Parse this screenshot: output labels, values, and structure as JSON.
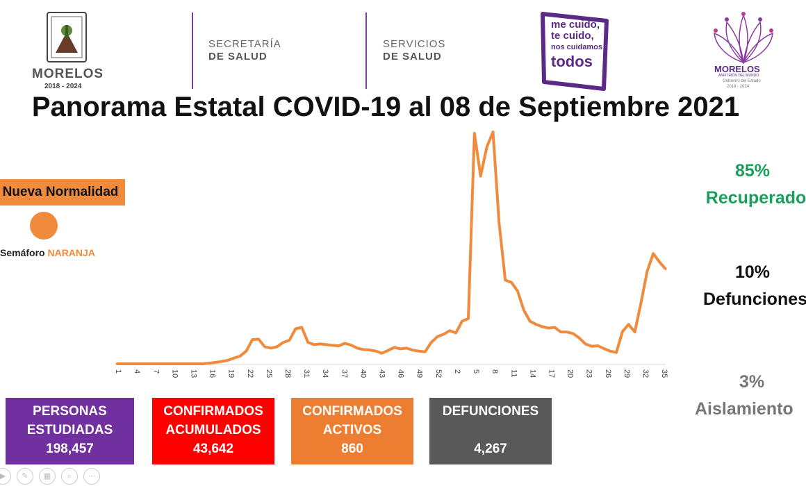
{
  "header": {
    "logo_state_name": "MORELOS",
    "logo_state_years": "2018 - 2024",
    "dept1_line1": "SECRETARÍA",
    "dept1_line2": "DE SALUD",
    "dept2_line1": "SERVICIOS",
    "dept2_line2": "DE SALUD",
    "campaign_line1": "me cuido,",
    "campaign_line2": "te cuido,",
    "campaign_line3": "nos cuidamos",
    "campaign_line4": "todos",
    "logo2_name": "MORELOS",
    "logo2_tagline": "ANFITRIÓN DEL MUNDO",
    "logo2_sub": "Gobierno del Estado",
    "logo2_years": "2018 - 2024"
  },
  "title": "Panorama Estatal COVID-19 al 08 de Septiembre 2021",
  "status": {
    "normal_label": "Nueva Normalidad",
    "semaforo_label": "Semáforo",
    "semaforo_color_label": "NARANJA",
    "color": "#f08a3c"
  },
  "right_stats": {
    "recovered_pct": "85%",
    "recovered_label": "Recuperados",
    "deaths_pct": "10%",
    "deaths_label": "Defunciones",
    "isolation_pct": "3%",
    "isolation_label": "Aislamiento"
  },
  "boxes": [
    {
      "label1": "PERSONAS",
      "label2": "ESTUDIADAS",
      "value": "198,457",
      "color": "#7030a0"
    },
    {
      "label1": "CONFIRMADOS",
      "label2": "ACUMULADOS",
      "value": "43,642",
      "color": "#ff0000"
    },
    {
      "label1": "CONFIRMADOS",
      "label2": "ACTIVOS",
      "value": "860",
      "color": "#ed7d31"
    },
    {
      "label1": "DEFUNCIONES",
      "label2": "",
      "value": "4,267",
      "color": "#595959"
    }
  ],
  "chart_data": {
    "type": "line",
    "xlabel": "",
    "ylabel": "",
    "x_ticks": [
      "1",
      "4",
      "7",
      "10",
      "13",
      "16",
      "19",
      "22",
      "25",
      "28",
      "31",
      "34",
      "37",
      "40",
      "43",
      "46",
      "49",
      "52",
      "2",
      "5",
      "8",
      "11",
      "14",
      "17",
      "20",
      "23",
      "26",
      "29",
      "32",
      "35"
    ],
    "series": [
      {
        "color": "#f08a3c",
        "values": [
          0,
          0,
          0,
          0,
          0,
          0,
          0,
          0,
          0,
          0,
          0,
          0,
          0,
          0,
          0,
          0.3,
          0.6,
          1,
          1.5,
          2.5,
          3.3,
          5.5,
          10.5,
          10.7,
          7.4,
          6.8,
          7.4,
          9.3,
          10.2,
          15.2,
          15.8,
          9.3,
          8.3,
          8.6,
          8.3,
          8.0,
          7.8,
          8.9,
          8.1,
          6.8,
          6.2,
          6.0,
          5.5,
          4.6,
          5.8,
          7.1,
          6.5,
          6.8,
          5.9,
          5.5,
          5.2,
          9.3,
          11.8,
          12.8,
          14.4,
          13.4,
          18.5,
          19.6,
          100,
          81.4,
          94.0,
          100.6,
          61.2,
          36.3,
          35.3,
          31.5,
          23.3,
          18.5,
          17.1,
          16.1,
          15.5,
          15.8,
          13.8,
          13.8,
          13.1,
          11.2,
          8.6,
          7.6,
          7.8,
          6.6,
          5.5,
          4.9,
          14.0,
          17.1,
          13.8,
          26.4,
          40.1,
          47.8,
          44.2,
          41.1
        ]
      }
    ]
  }
}
